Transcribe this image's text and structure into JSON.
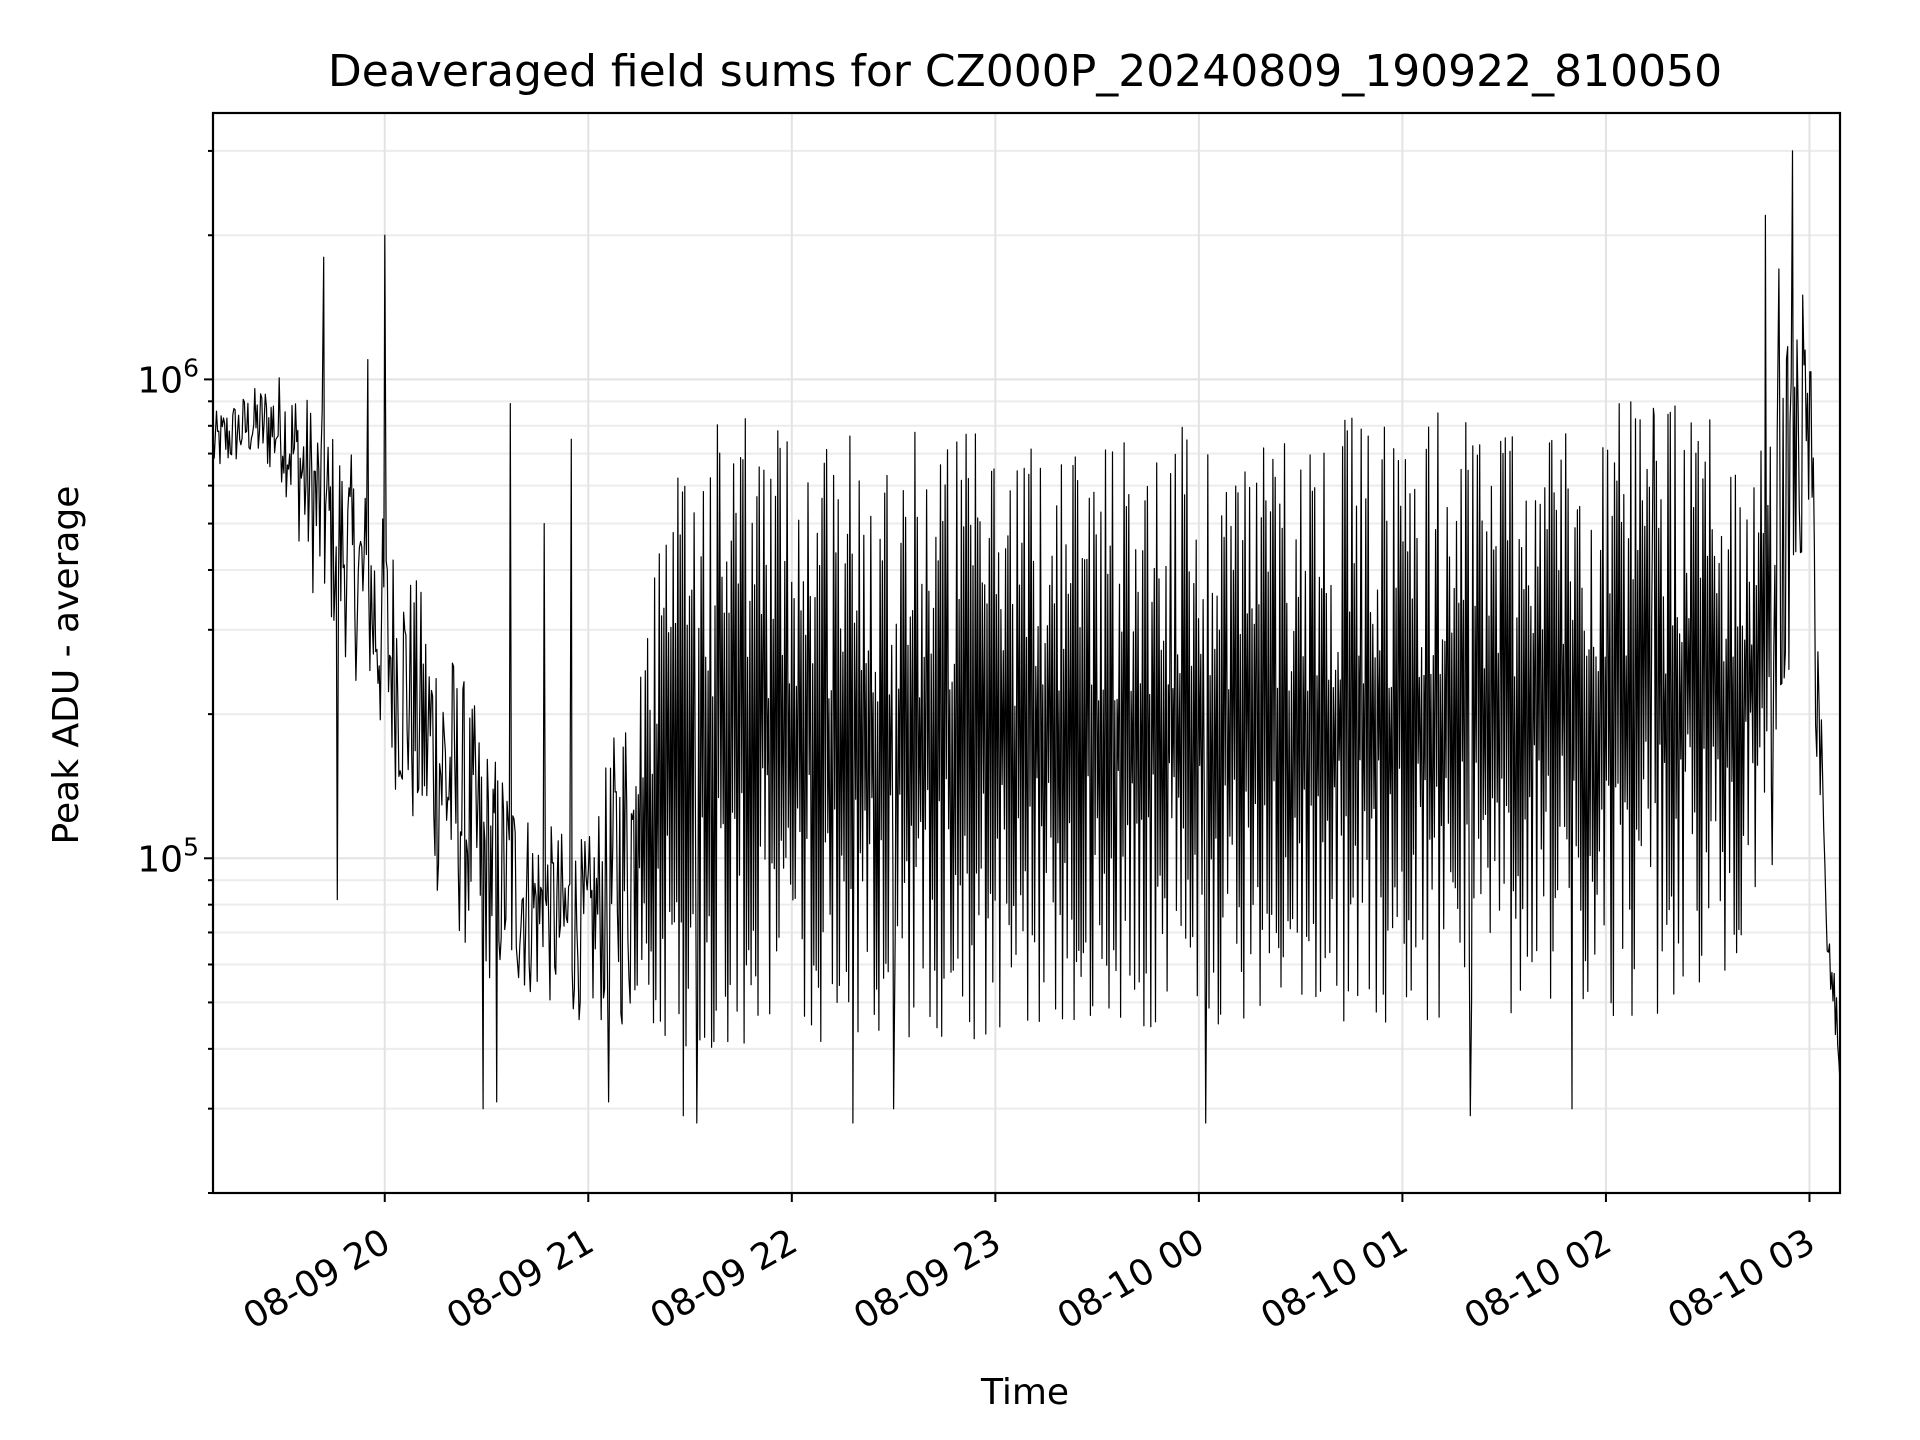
{
  "chart_data": {
    "type": "line",
    "title": "Deaveraged field sums for CZ000P_20240809_190922_810050",
    "xlabel": "Time",
    "ylabel": "Peak ADU - average",
    "y_scale": "log",
    "ylim": [
      20000,
      3600000
    ],
    "xlim": [
      "2024-08-09 19:09:22",
      "2024-08-10 03:09:00"
    ],
    "grid": true,
    "line_color": "#000000",
    "x_ticks": [
      {
        "time": "2024-08-09 20:00",
        "label": "08-09 20"
      },
      {
        "time": "2024-08-09 21:00",
        "label": "08-09 21"
      },
      {
        "time": "2024-08-09 22:00",
        "label": "08-09 22"
      },
      {
        "time": "2024-08-09 23:00",
        "label": "08-09 23"
      },
      {
        "time": "2024-08-10 00:00",
        "label": "08-10 00"
      },
      {
        "time": "2024-08-10 01:00",
        "label": "08-10 01"
      },
      {
        "time": "2024-08-10 02:00",
        "label": "08-10 02"
      },
      {
        "time": "2024-08-10 03:00",
        "label": "08-10 03"
      }
    ],
    "y_ticks": [
      {
        "value": 100000,
        "base": "10",
        "exp": "5"
      },
      {
        "value": 1000000,
        "base": "10",
        "exp": "6"
      }
    ],
    "series": [
      {
        "envelope": {
          "x": [
            "2024-08-09 19:09:22",
            "2024-08-09 19:20",
            "2024-08-09 19:30",
            "2024-08-09 19:40",
            "2024-08-09 19:50",
            "2024-08-09 20:00",
            "2024-08-09 20:10",
            "2024-08-09 20:20",
            "2024-08-09 20:30",
            "2024-08-09 20:45",
            "2024-08-09 21:00",
            "2024-08-09 21:30",
            "2024-08-09 22:00",
            "2024-08-09 22:30",
            "2024-08-09 23:00",
            "2024-08-09 23:30",
            "2024-08-10 00:00",
            "2024-08-10 00:30",
            "2024-08-10 01:00",
            "2024-08-10 01:30",
            "2024-08-10 02:00",
            "2024-08-10 02:20",
            "2024-08-10 02:35",
            "2024-08-10 02:45",
            "2024-08-10 02:55",
            "2024-08-10 03:00",
            "2024-08-10 03:02",
            "2024-08-10 03:05",
            "2024-08-10 03:09:00"
          ],
          "upper": [
            850000,
            950000,
            1050000,
            900000,
            700000,
            520000,
            380000,
            280000,
            180000,
            120000,
            110000,
            830000,
            830000,
            830000,
            790000,
            790000,
            800000,
            820000,
            850000,
            900000,
            900000,
            900000,
            850000,
            700000,
            1300000,
            1200000,
            700000,
            75000,
            48000
          ],
          "lower": [
            620000,
            680000,
            600000,
            330000,
            250000,
            160000,
            100000,
            70000,
            55000,
            50000,
            45000,
            40000,
            40000,
            40000,
            40000,
            42000,
            45000,
            45000,
            45000,
            45000,
            45000,
            48000,
            55000,
            80000,
            280000,
            500000,
            150000,
            62000,
            32000
          ]
        },
        "spikes": [
          {
            "t": "2024-08-09 19:42",
            "y": 1800000
          },
          {
            "t": "2024-08-09 20:00",
            "y": 2000000
          },
          {
            "t": "2024-08-09 19:55",
            "y": 1100000
          },
          {
            "t": "2024-08-09 19:46",
            "y": 82000
          },
          {
            "t": "2024-08-09 20:37",
            "y": 890000
          },
          {
            "t": "2024-08-09 20:47",
            "y": 500000
          },
          {
            "t": "2024-08-09 20:55",
            "y": 750000
          },
          {
            "t": "2024-08-09 20:29",
            "y": 30000
          },
          {
            "t": "2024-08-09 20:33",
            "y": 31000
          },
          {
            "t": "2024-08-09 21:06",
            "y": 31000
          },
          {
            "t": "2024-08-09 21:28",
            "y": 29000
          },
          {
            "t": "2024-08-09 21:32",
            "y": 28000
          },
          {
            "t": "2024-08-09 22:18",
            "y": 28000
          },
          {
            "t": "2024-08-09 22:30",
            "y": 30000
          },
          {
            "t": "2024-08-10 00:02",
            "y": 28000
          },
          {
            "t": "2024-08-10 01:20",
            "y": 29000
          },
          {
            "t": "2024-08-10 01:50",
            "y": 30000
          },
          {
            "t": "2024-08-10 02:14",
            "y": 870000
          },
          {
            "t": "2024-08-10 02:47",
            "y": 2200000
          },
          {
            "t": "2024-08-10 02:49",
            "y": 97000
          },
          {
            "t": "2024-08-10 02:51",
            "y": 1700000
          },
          {
            "t": "2024-08-10 02:55",
            "y": 3000000
          },
          {
            "t": "2024-08-10 02:58",
            "y": 1500000
          }
        ]
      }
    ]
  }
}
